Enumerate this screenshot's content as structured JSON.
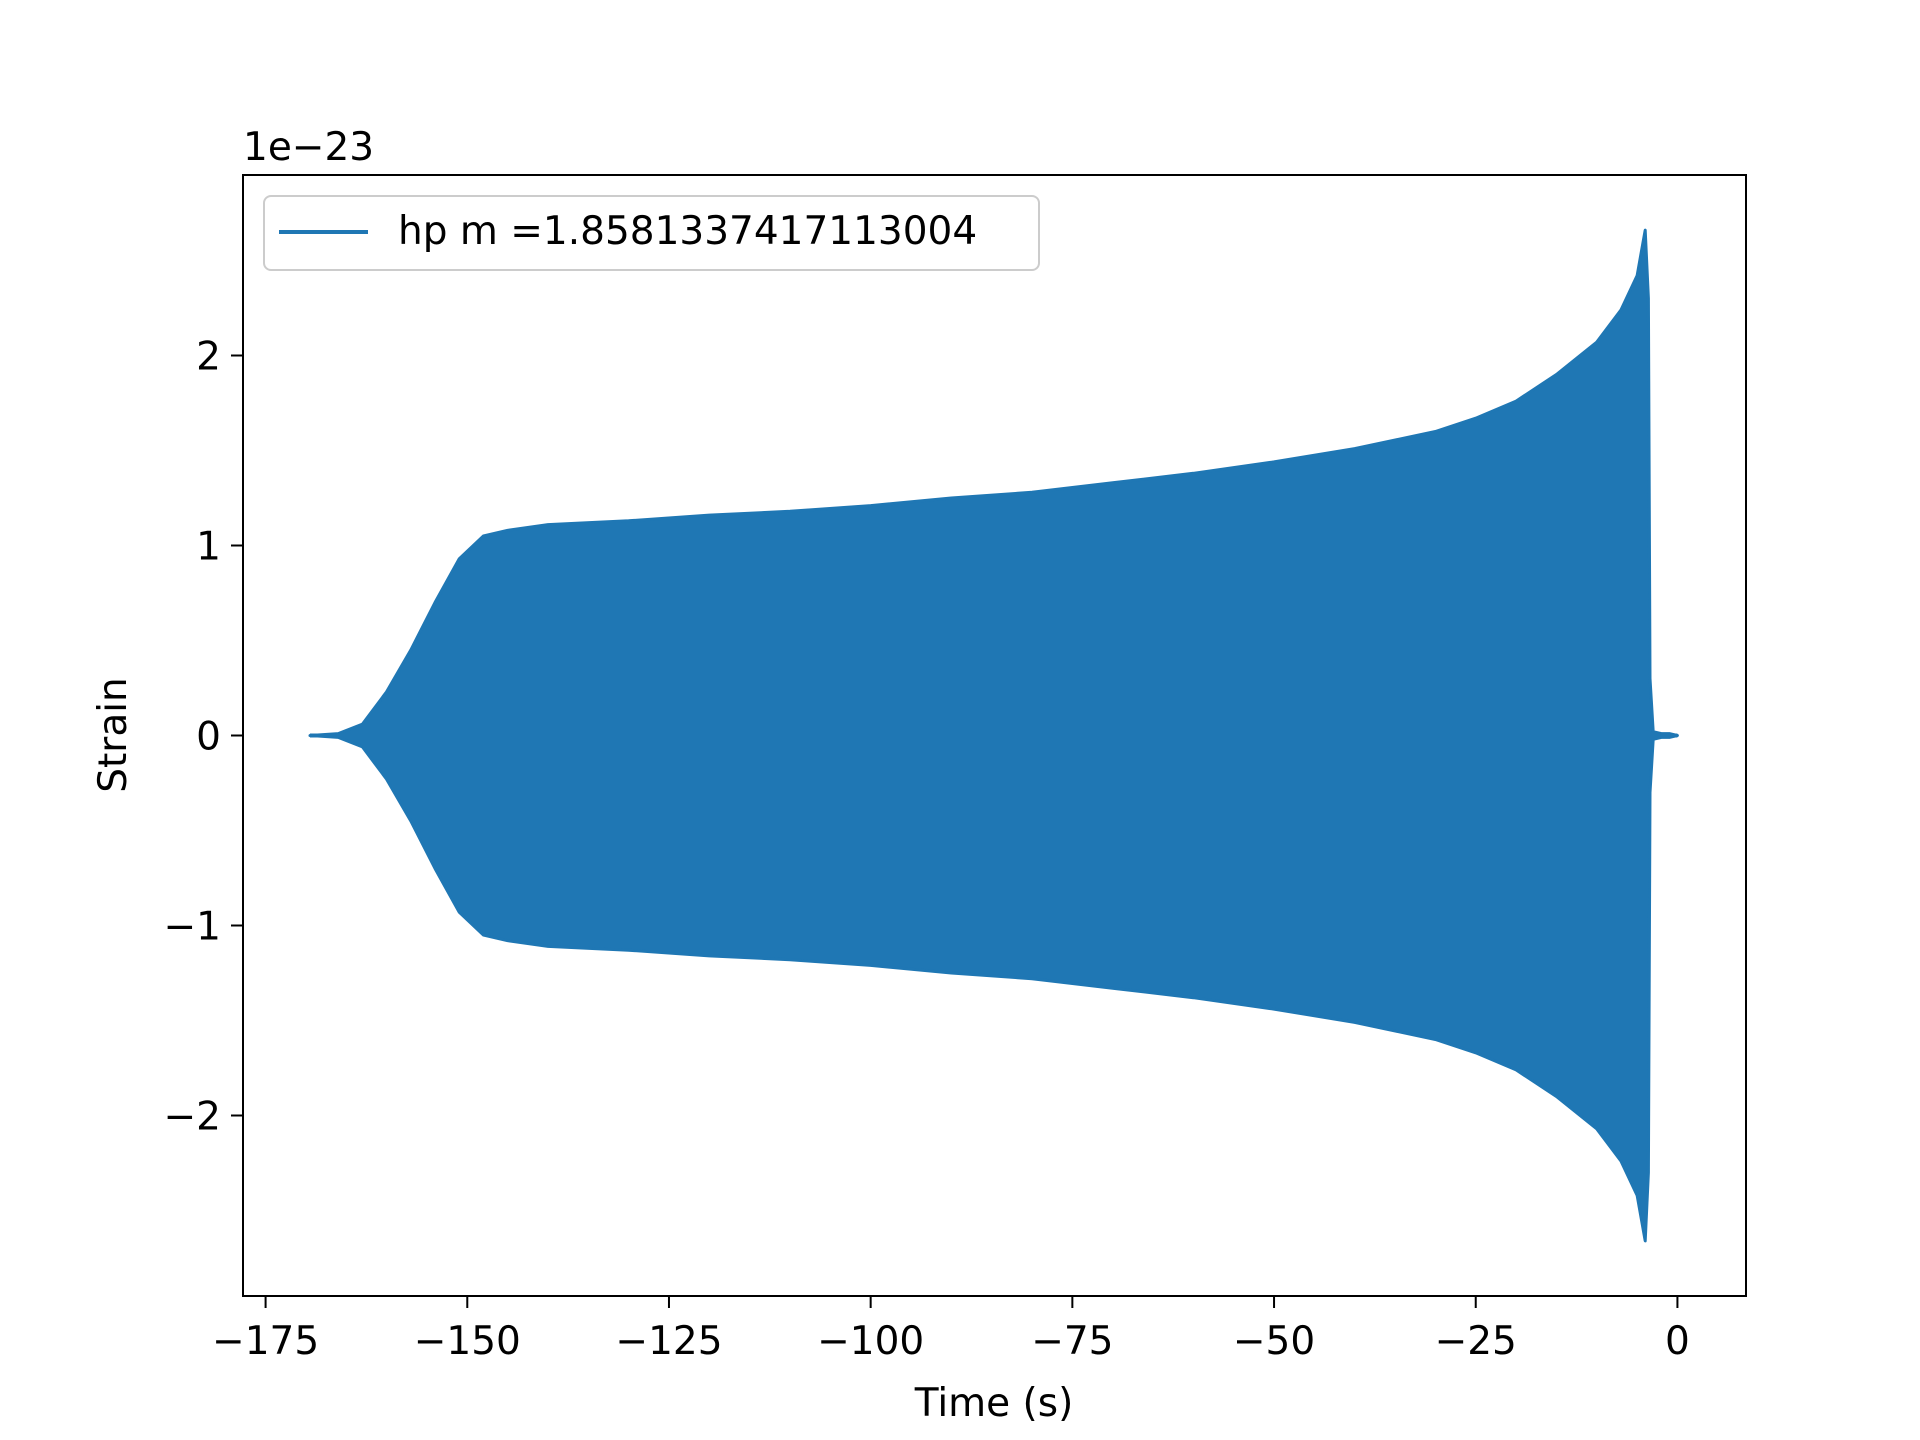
{
  "chart_data": {
    "type": "line",
    "xlabel": "Time (s)",
    "ylabel": "Strain",
    "y_offset_text": "1e−23",
    "y_scale_factor": 1e-23,
    "xlim": [
      -177.8,
      8.5
    ],
    "ylim": [
      -2.95,
      2.95
    ],
    "x_ticks": [
      -175,
      -150,
      -125,
      -100,
      -75,
      -50,
      -25,
      0
    ],
    "x_tick_labels": [
      "−175",
      "−150",
      "−125",
      "−100",
      "−75",
      "−50",
      "−25",
      "0"
    ],
    "y_ticks": [
      -2,
      -1,
      0,
      1,
      2
    ],
    "y_tick_labels": [
      "−2",
      "−1",
      "0",
      "1",
      "2"
    ],
    "grid": false,
    "legend": "top-left",
    "series": [
      {
        "name": "hp m =1.8581337417113004",
        "color": "#1f77b4",
        "envelope_time": [
          -169.5,
          -166,
          -163,
          -160,
          -157,
          -154,
          -151,
          -148,
          -145,
          -140,
          -130,
          -120,
          -110,
          -100,
          -90,
          -80,
          -70,
          -60,
          -50,
          -40,
          -30,
          -25,
          -20,
          -15,
          -10,
          -7,
          -5,
          -4,
          -3.6,
          -3.4,
          -3,
          -2,
          -1,
          0
        ],
        "envelope_upper": [
          0,
          0.01,
          0.06,
          0.23,
          0.45,
          0.7,
          0.93,
          1.05,
          1.08,
          1.11,
          1.13,
          1.16,
          1.18,
          1.21,
          1.25,
          1.28,
          1.33,
          1.38,
          1.44,
          1.51,
          1.6,
          1.67,
          1.76,
          1.9,
          2.07,
          2.24,
          2.42,
          2.66,
          2.3,
          0.3,
          0.02,
          0.01,
          0.01,
          0
        ]
      }
    ]
  }
}
